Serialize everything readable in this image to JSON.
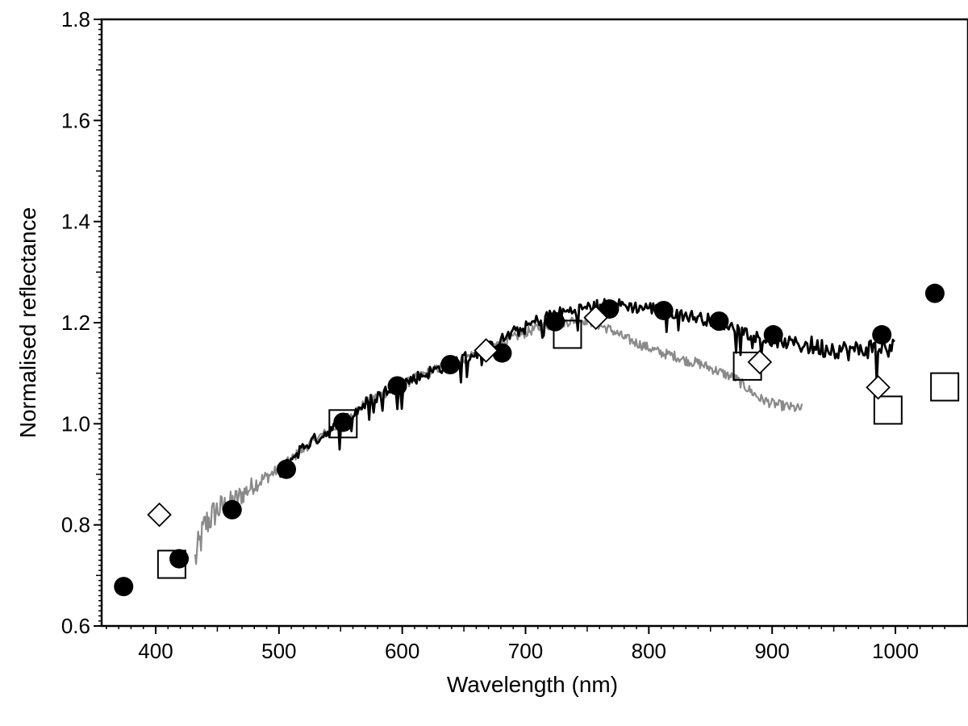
{
  "chart_data": {
    "type": "scatter",
    "title": "",
    "xlabel": "Wavelength (nm)",
    "ylabel": "Normalised reflectance",
    "xlim": [
      350,
      1040
    ],
    "ylim": [
      0.6,
      1.8
    ],
    "x_ticks": [
      400,
      500,
      600,
      700,
      800,
      900,
      1000
    ],
    "y_ticks": [
      0.6,
      0.8,
      1.0,
      1.2,
      1.4,
      1.6,
      1.8
    ],
    "x_tick_labels": [
      "400",
      "500",
      "600",
      "700",
      "800",
      "900",
      "1000"
    ],
    "y_tick_labels": [
      "0.6",
      "0.8",
      "1.0",
      "1.2",
      "1.4",
      "1.6",
      "1.8"
    ],
    "grid": false,
    "legend": "none",
    "series": [
      {
        "kind": "line",
        "color": "#8a8a8a",
        "x": [
          432,
          440,
          450,
          460,
          470,
          480,
          490,
          500,
          510,
          520,
          530,
          540,
          550,
          560,
          570,
          580,
          590,
          600,
          610,
          620,
          630,
          640,
          650,
          660,
          670,
          680,
          690,
          700,
          710,
          720,
          730,
          740,
          750,
          760,
          770,
          780,
          790,
          800,
          810,
          820,
          830,
          840,
          850,
          860,
          870,
          880,
          890,
          900,
          910,
          920,
          925
        ],
        "y": [
          0.73,
          0.8,
          0.83,
          0.84,
          0.86,
          0.88,
          0.895,
          0.91,
          0.93,
          0.95,
          0.97,
          0.985,
          1.0,
          1.02,
          1.04,
          1.055,
          1.065,
          1.075,
          1.09,
          1.1,
          1.11,
          1.12,
          1.13,
          1.14,
          1.15,
          1.16,
          1.17,
          1.18,
          1.19,
          1.195,
          1.2,
          1.205,
          1.205,
          1.195,
          1.185,
          1.17,
          1.16,
          1.15,
          1.14,
          1.135,
          1.125,
          1.12,
          1.11,
          1.1,
          1.09,
          1.07,
          1.05,
          1.04,
          1.035,
          1.03,
          1.03
        ],
        "noise": 0.02
      },
      {
        "kind": "line",
        "color": "#000000",
        "x": [
          500,
          510,
          520,
          530,
          540,
          550,
          560,
          570,
          580,
          590,
          600,
          610,
          620,
          630,
          640,
          650,
          660,
          670,
          680,
          690,
          700,
          710,
          720,
          730,
          740,
          750,
          760,
          770,
          780,
          790,
          800,
          810,
          820,
          830,
          840,
          850,
          860,
          870,
          880,
          890,
          900,
          910,
          920,
          930,
          940,
          950,
          960,
          970,
          980,
          990,
          1000
        ],
        "y": [
          0.9,
          0.93,
          0.955,
          0.97,
          0.985,
          1.0,
          1.02,
          1.04,
          1.055,
          1.07,
          1.08,
          1.09,
          1.1,
          1.11,
          1.12,
          1.13,
          1.14,
          1.15,
          1.165,
          1.18,
          1.19,
          1.205,
          1.215,
          1.22,
          1.225,
          1.23,
          1.235,
          1.235,
          1.235,
          1.23,
          1.23,
          1.225,
          1.22,
          1.215,
          1.21,
          1.205,
          1.2,
          1.19,
          1.18,
          1.17,
          1.165,
          1.16,
          1.16,
          1.155,
          1.15,
          1.15,
          1.145,
          1.145,
          1.15,
          1.15,
          1.15
        ],
        "noise": 0.025
      },
      {
        "kind": "markers",
        "marker": "filled-circle",
        "x": [
          374,
          419,
          462,
          506,
          552,
          596,
          639,
          681,
          724,
          768,
          812,
          857,
          901,
          989,
          1032
        ],
        "y": [
          0.678,
          0.733,
          0.83,
          0.91,
          1.003,
          1.075,
          1.117,
          1.14,
          1.202,
          1.227,
          1.224,
          1.203,
          1.176,
          1.176,
          1.258
        ]
      },
      {
        "kind": "markers",
        "marker": "open-square",
        "x": [
          413,
          552,
          734,
          880,
          994,
          1040
        ],
        "y": [
          0.722,
          1.0,
          1.177,
          1.114,
          1.027,
          1.073
        ]
      },
      {
        "kind": "markers",
        "marker": "open-diamond",
        "x": [
          403,
          668,
          757,
          890,
          986
        ],
        "y": [
          0.82,
          1.145,
          1.21,
          1.122,
          1.072
        ]
      }
    ]
  }
}
